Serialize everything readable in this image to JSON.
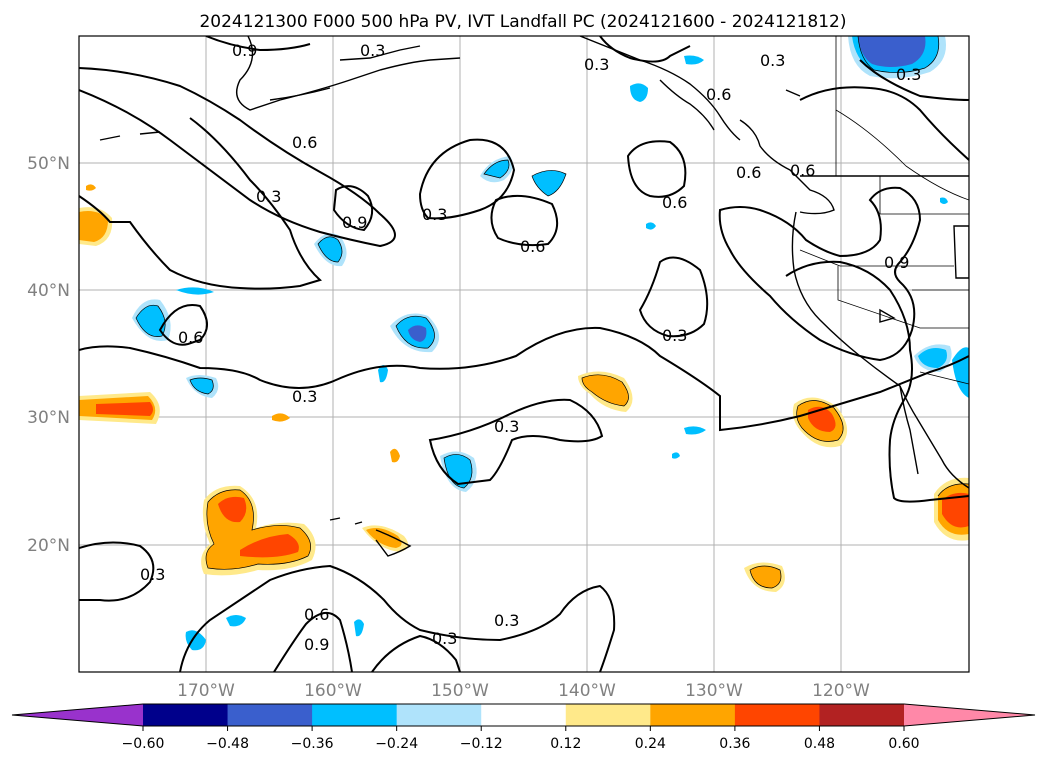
{
  "title": "2024121300 F000 500 hPa PV, IVT Landfall PC (2024121600 - 2024121812)",
  "lat_labels": [
    "50°N",
    "40°N",
    "30°N",
    "20°N"
  ],
  "lon_labels": [
    "170°W",
    "160°W",
    "150°W",
    "140°W",
    "130°W",
    "120°W"
  ],
  "colorbar": {
    "colors": [
      "#9932cc",
      "#00008b",
      "#3a5fcd",
      "#00bfff",
      "#afe3fb",
      "#ffffff",
      "#ffe98a",
      "#ffa500",
      "#ff4500",
      "#b22222",
      "#ff88a8"
    ],
    "ticks": [
      "−0.60",
      "−0.48",
      "−0.36",
      "−0.24",
      "−0.12",
      "0.12",
      "0.24",
      "0.36",
      "0.48",
      "0.60"
    ]
  },
  "contour_labels": [
    "0.9",
    "0.3",
    "0.6",
    "0.6",
    "0.3",
    "0.3",
    "0.9",
    "0.3",
    "0.6",
    "0.6",
    "0.6",
    "0.3",
    "0.3",
    "0.3",
    "0.3",
    "0.6",
    "0.6",
    "0.9",
    "0.3",
    "0.6",
    "0.9",
    "0.3",
    "0.3",
    "0.3"
  ]
}
